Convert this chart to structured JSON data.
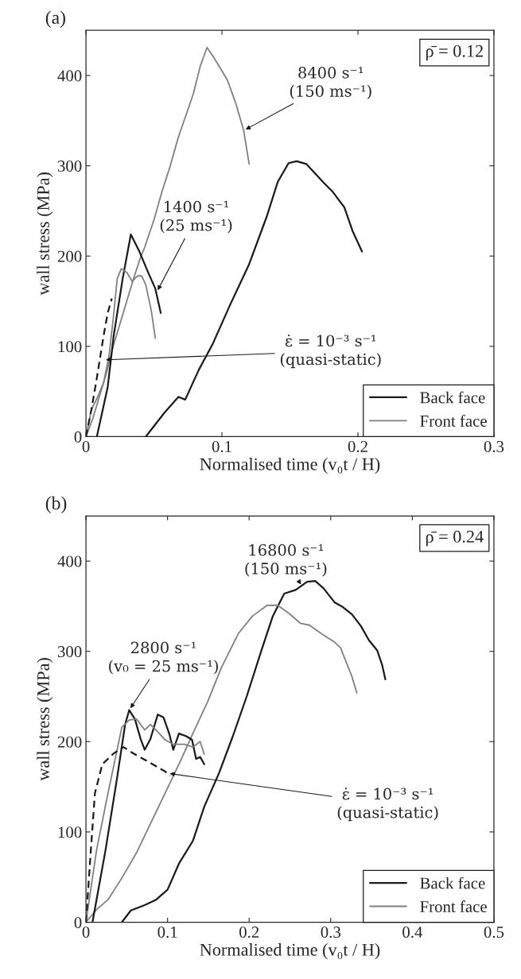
{
  "chart_data": [
    {
      "type": "line",
      "title": "(a)",
      "xlabel": "Normalised time (v₀t / H)",
      "ylabel": "wall stress (MPa)",
      "xlim": [
        0,
        0.3
      ],
      "xticks": [
        0,
        0.1,
        0.2,
        0.3
      ],
      "ylim": [
        0,
        450
      ],
      "yticks": [
        0,
        100,
        200,
        300,
        400
      ],
      "grid": false,
      "legend": "bottom right",
      "series": [
        {
          "name": "Back face",
          "color": "#1a1a1a",
          "x": [
            0.044,
            0.058,
            0.068,
            0.073,
            0.083,
            0.093,
            0.106,
            0.12,
            0.133,
            0.141,
            0.149,
            0.155,
            0.162,
            0.175,
            0.181,
            0.19,
            0.196,
            0.203
          ],
          "values": [
            0,
            27,
            44,
            41,
            74,
            102,
            146,
            191,
            244,
            282,
            303,
            305,
            302,
            281,
            272,
            254,
            228,
            205
          ]
        },
        {
          "name": "Front face",
          "color": "#808080",
          "x": [
            0,
            0.005,
            0.01,
            0.015,
            0.02,
            0.025,
            0.03,
            0.035,
            0.04,
            0.043,
            0.05,
            0.056,
            0.062,
            0.068,
            0.074,
            0.079,
            0.084,
            0.089,
            0.094,
            0.1,
            0.104,
            0.11,
            0.116,
            0.12
          ],
          "values": [
            0,
            20,
            45,
            70,
            100,
            125,
            150,
            175,
            198,
            209,
            240,
            272,
            300,
            332,
            358,
            380,
            410,
            431,
            420,
            405,
            395,
            370,
            339,
            302
          ]
        },
        {
          "color": "#1a1a1a",
          "x": [
            0.008,
            0.016,
            0.0204,
            0.027,
            0.033,
            0.039,
            0.046,
            0.051,
            0.055
          ],
          "values": [
            0,
            55,
            112,
            175,
            224,
            206,
            181,
            164,
            137
          ]
        },
        {
          "color": "#808080",
          "x": [
            0,
            0.004,
            0.008,
            0.013,
            0.017,
            0.02,
            0.023,
            0.026,
            0.03,
            0.034,
            0.038,
            0.041,
            0.044,
            0.048,
            0.051
          ],
          "values": [
            0,
            30,
            42,
            60,
            90,
            130,
            175,
            186,
            182,
            172,
            178,
            178,
            168,
            140,
            109
          ]
        },
        {
          "color": "#1a1a1a",
          "line_style": "dashed",
          "x": [
            0,
            0.004,
            0.008,
            0.013,
            0.016,
            0.019
          ],
          "values": [
            0,
            30,
            65,
            112,
            137,
            153
          ]
        }
      ],
      "annotations": [
        {
          "text": "8400 s⁻¹\n(150 ms⁻¹)",
          "x": 0.116,
          "y": 339
        },
        {
          "text": "1400 s⁻¹\n(25 ms⁻¹)",
          "x": 0.052,
          "y": 160
        },
        {
          "text": "ε̇ = 10⁻³ s⁻¹\n(quasi-static)",
          "x": 0.013,
          "y": 85
        },
        "ρ̄ = 0.12"
      ]
    },
    {
      "type": "line",
      "title": "(b)",
      "xlabel": "Normalised time (v₀t / H)",
      "ylabel": "wall stress (MPa)",
      "xlim": [
        0,
        0.5
      ],
      "xticks": [
        0,
        0.1,
        0.2,
        0.3,
        0.4,
        0.5
      ],
      "ylim": [
        0,
        450
      ],
      "yticks": [
        0,
        100,
        200,
        300,
        400
      ],
      "grid": false,
      "legend": "bottom right",
      "series": [
        {
          "name": "Back face",
          "color": "#1a1a1a",
          "x": [
            0.044,
            0.055,
            0.072,
            0.086,
            0.1,
            0.114,
            0.131,
            0.145,
            0.163,
            0.18,
            0.197,
            0.215,
            0.229,
            0.243,
            0.257,
            0.271,
            0.281,
            0.291,
            0.305,
            0.315,
            0.326,
            0.337,
            0.347,
            0.357,
            0.363,
            0.367
          ],
          "values": [
            0,
            13,
            19,
            25,
            36,
            65,
            90,
            128,
            165,
            206,
            250,
            301,
            339,
            364,
            368,
            377,
            378,
            370,
            354,
            349,
            341,
            328,
            312,
            301,
            285,
            269
          ]
        },
        {
          "name": "Front face",
          "color": "#808080",
          "x": [
            0,
            0.013,
            0.027,
            0.044,
            0.062,
            0.079,
            0.097,
            0.114,
            0.131,
            0.149,
            0.166,
            0.187,
            0.204,
            0.222,
            0.235,
            0.249,
            0.263,
            0.274,
            0.288,
            0.305,
            0.312,
            0.319,
            0.326,
            0.332
          ],
          "values": [
            0,
            14,
            25,
            49,
            77,
            109,
            143,
            175,
            209,
            244,
            282,
            320,
            339,
            351,
            351,
            342,
            331,
            329,
            320,
            310,
            304,
            288,
            272,
            254
          ]
        },
        {
          "color": "#1a1a1a",
          "x": [
            0.008,
            0.024,
            0.038,
            0.048,
            0.053,
            0.06,
            0.067,
            0.072,
            0.079,
            0.088,
            0.095,
            0.102,
            0.107,
            0.114,
            0.123,
            0.13,
            0.135,
            0.14,
            0.145
          ],
          "values": [
            0,
            80,
            159,
            219,
            235,
            225,
            203,
            191,
            203,
            230,
            227,
            209,
            191,
            209,
            206,
            202,
            181,
            183,
            175
          ]
        },
        {
          "color": "#808080",
          "x": [
            0,
            0.013,
            0.027,
            0.044,
            0.053,
            0.062,
            0.072,
            0.079,
            0.09,
            0.097,
            0.107,
            0.121,
            0.131,
            0.14,
            0.145
          ],
          "values": [
            0,
            80,
            143,
            216,
            224,
            225,
            213,
            219,
            209,
            202,
            197,
            197,
            194,
            200,
            186
          ]
        },
        {
          "color": "#1a1a1a",
          "line_style": "dashed",
          "x": [
            0,
            0.006,
            0.011,
            0.02,
            0.034,
            0.046,
            0.058,
            0.076,
            0.097,
            0.103
          ],
          "values": [
            0,
            80,
            143,
            175,
            187,
            194,
            187,
            178,
            167,
            162
          ]
        }
      ],
      "annotations": [
        {
          "text": "16800 s⁻¹\n(150 ms⁻¹)",
          "x": 0.265,
          "y": 372
        },
        {
          "text": "2800 s⁻¹\n(v₀ = 25 ms⁻¹)",
          "x": 0.053,
          "y": 235
        },
        {
          "text": "ε̇ = 10⁻³ s⁻¹\n(quasi-static)",
          "x": 0.1,
          "y": 165
        },
        "ρ̄ = 0.24"
      ]
    }
  ]
}
